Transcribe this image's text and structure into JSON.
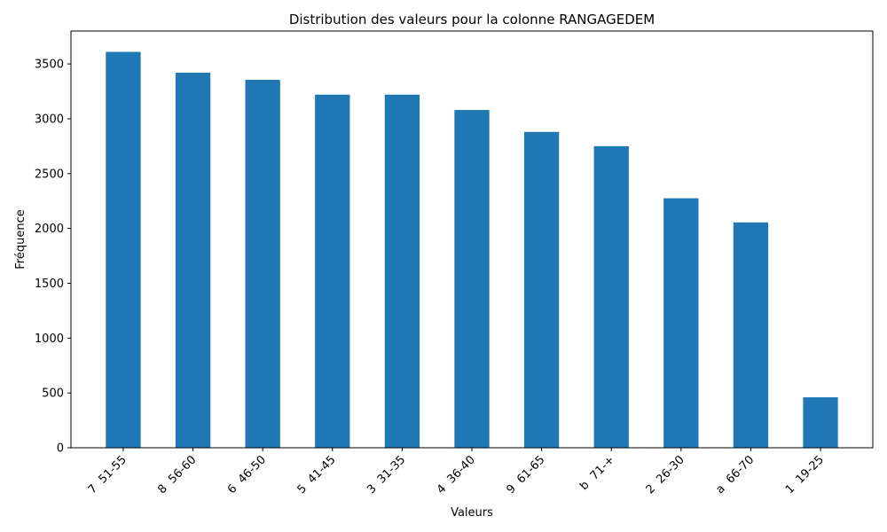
{
  "chart_data": {
    "type": "bar",
    "title": "Distribution des valeurs pour la colonne RANGAGEDEM",
    "xlabel": "Valeurs",
    "ylabel": "Fréquence",
    "categories": [
      "7  51-55",
      "8  56-60",
      "6  46-50",
      "5  41-45",
      "3  31-35",
      "4  36-40",
      "9  61-65",
      "b  71-+",
      "2  26-30",
      "a  66-70",
      "1  19-25"
    ],
    "values": [
      3610,
      3420,
      3355,
      3220,
      3220,
      3080,
      2880,
      2750,
      2275,
      2055,
      460
    ],
    "ylim": [
      0,
      3800
    ],
    "yticks": [
      0,
      500,
      1000,
      1500,
      2000,
      2500,
      3000,
      3500
    ],
    "bar_color": "#1f77b4",
    "grid": false,
    "legend": "none"
  }
}
